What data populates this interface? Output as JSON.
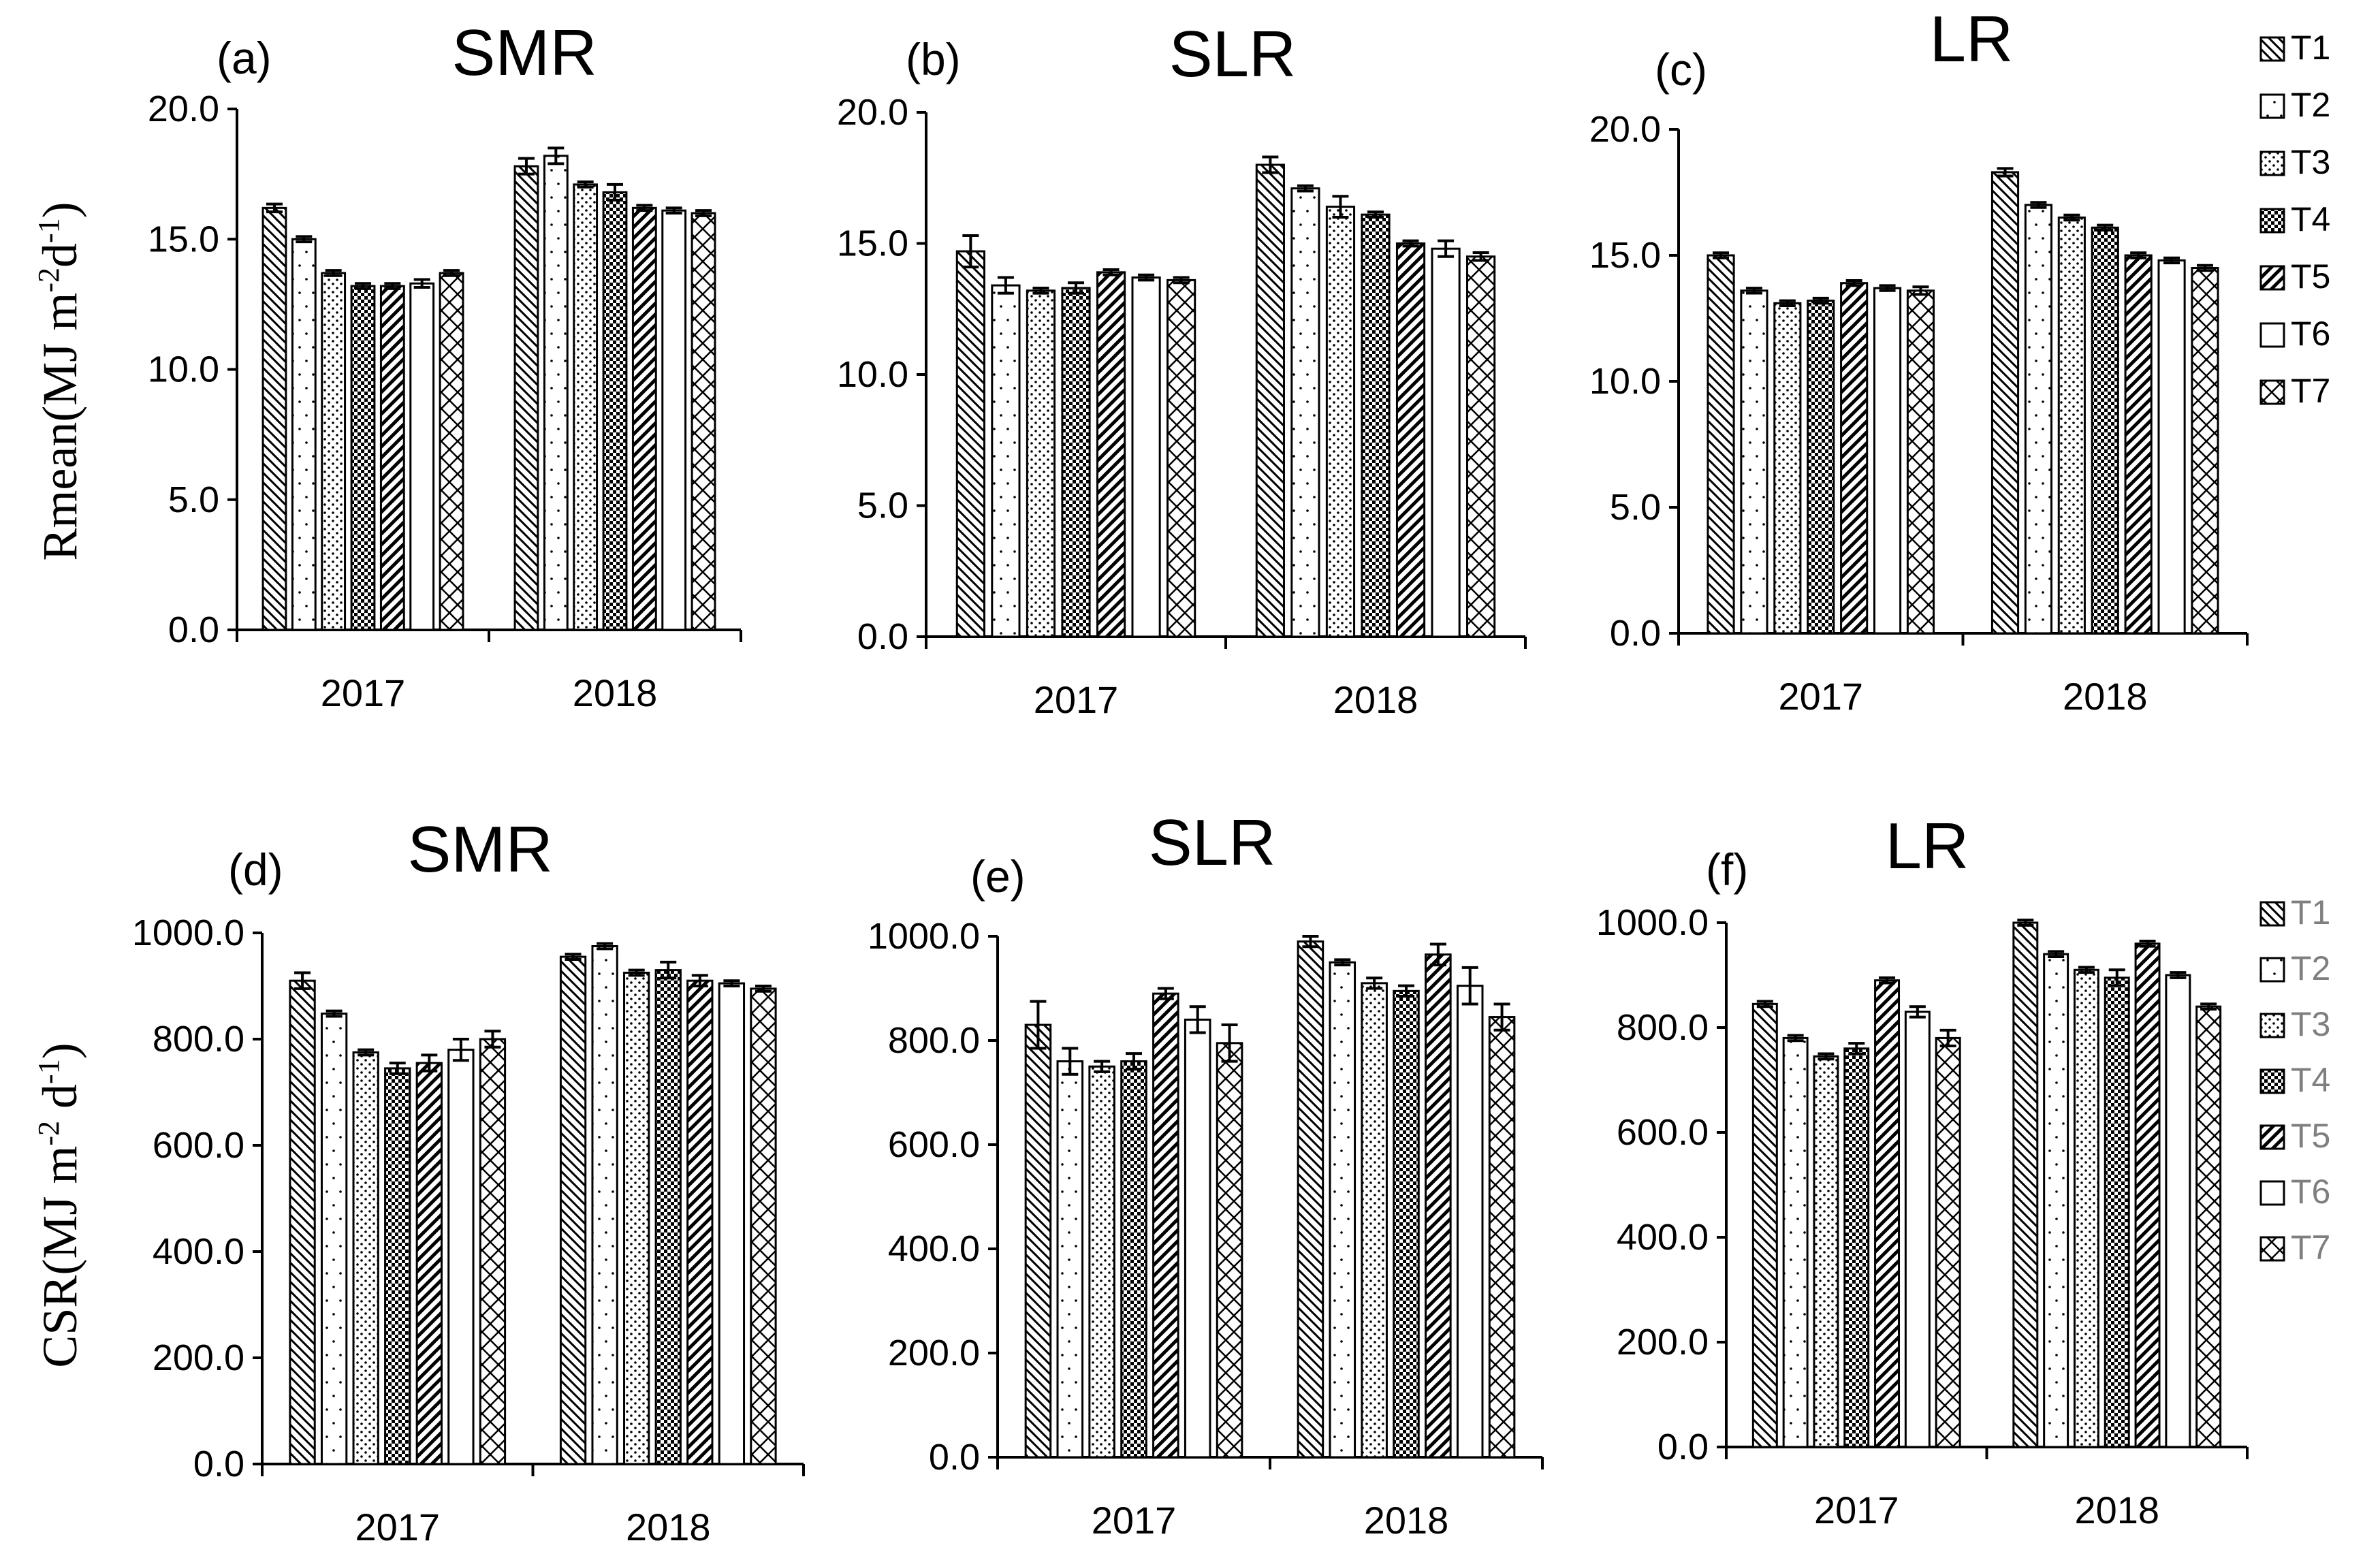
{
  "legends": [
    {
      "items": [
        "T1",
        "T2",
        "T3",
        "T4",
        "T5",
        "T6",
        "T7"
      ],
      "color": "#000000"
    },
    {
      "items": [
        "T1",
        "T2",
        "T3",
        "T4",
        "T5",
        "T6",
        "T7"
      ],
      "color": "#7f7f7f"
    }
  ],
  "row_y_labels": [
    {
      "main": "Rmean(MJ m",
      "sup1": "-2",
      "mid": "d",
      "sup2": "-1",
      "end": ")"
    },
    {
      "main": "CSR(MJ m",
      "sup1": "-2",
      "mid": " d",
      "sup2": "-1",
      "end": ")"
    }
  ],
  "chart_data": [
    {
      "type": "bar",
      "tag": "(a)",
      "title": "SMR",
      "categories": [
        "2017",
        "2018"
      ],
      "ylim": [
        0,
        20
      ],
      "yticks": [
        "0.0",
        "5.0",
        "10.0",
        "15.0",
        "20.0"
      ],
      "ylabel": "Rmean(MJ m-2d-1)",
      "series": [
        {
          "name": "T1",
          "values": [
            16.2,
            17.8
          ],
          "err": [
            0.15,
            0.3
          ]
        },
        {
          "name": "T2",
          "values": [
            15.0,
            18.2
          ],
          "err": [
            0.1,
            0.3
          ]
        },
        {
          "name": "T3",
          "values": [
            13.7,
            17.1
          ],
          "err": [
            0.1,
            0.1
          ]
        },
        {
          "name": "T4",
          "values": [
            13.2,
            16.8
          ],
          "err": [
            0.1,
            0.3
          ]
        },
        {
          "name": "T5",
          "values": [
            13.2,
            16.2
          ],
          "err": [
            0.1,
            0.1
          ]
        },
        {
          "name": "T6",
          "values": [
            13.3,
            16.1
          ],
          "err": [
            0.15,
            0.1
          ]
        },
        {
          "name": "T7",
          "values": [
            13.7,
            16.0
          ],
          "err": [
            0.1,
            0.1
          ]
        }
      ]
    },
    {
      "type": "bar",
      "tag": "(b)",
      "title": "SLR",
      "categories": [
        "2017",
        "2018"
      ],
      "ylim": [
        0,
        20
      ],
      "yticks": [
        "0.0",
        "5.0",
        "10.0",
        "15.0",
        "20.0"
      ],
      "ylabel": "",
      "series": [
        {
          "name": "T1",
          "values": [
            14.7,
            18.0
          ],
          "err": [
            0.6,
            0.3
          ]
        },
        {
          "name": "T2",
          "values": [
            13.4,
            17.1
          ],
          "err": [
            0.3,
            0.1
          ]
        },
        {
          "name": "T3",
          "values": [
            13.2,
            16.4
          ],
          "err": [
            0.1,
            0.4
          ]
        },
        {
          "name": "T4",
          "values": [
            13.3,
            16.1
          ],
          "err": [
            0.2,
            0.1
          ]
        },
        {
          "name": "T5",
          "values": [
            13.9,
            15.0
          ],
          "err": [
            0.1,
            0.1
          ]
        },
        {
          "name": "T6",
          "values": [
            13.7,
            14.8
          ],
          "err": [
            0.1,
            0.3
          ]
        },
        {
          "name": "T7",
          "values": [
            13.6,
            14.5
          ],
          "err": [
            0.1,
            0.15
          ]
        }
      ]
    },
    {
      "type": "bar",
      "tag": "(c)",
      "title": "LR",
      "categories": [
        "2017",
        "2018"
      ],
      "ylim": [
        0,
        20
      ],
      "yticks": [
        "0.0",
        "5.0",
        "10.0",
        "15.0",
        "20.0"
      ],
      "ylabel": "",
      "series": [
        {
          "name": "T1",
          "values": [
            15.0,
            18.3
          ],
          "err": [
            0.1,
            0.15
          ]
        },
        {
          "name": "T2",
          "values": [
            13.6,
            17.0
          ],
          "err": [
            0.1,
            0.1
          ]
        },
        {
          "name": "T3",
          "values": [
            13.1,
            16.5
          ],
          "err": [
            0.1,
            0.1
          ]
        },
        {
          "name": "T4",
          "values": [
            13.2,
            16.1
          ],
          "err": [
            0.1,
            0.1
          ]
        },
        {
          "name": "T5",
          "values": [
            13.9,
            15.0
          ],
          "err": [
            0.1,
            0.1
          ]
        },
        {
          "name": "T6",
          "values": [
            13.7,
            14.8
          ],
          "err": [
            0.1,
            0.1
          ]
        },
        {
          "name": "T7",
          "values": [
            13.6,
            14.5
          ],
          "err": [
            0.15,
            0.1
          ]
        }
      ]
    },
    {
      "type": "bar",
      "tag": "(d)",
      "title": "SMR",
      "categories": [
        "2017",
        "2018"
      ],
      "ylim": [
        0,
        1000
      ],
      "yticks": [
        "0.0",
        "200.0",
        "400.0",
        "600.0",
        "800.0",
        "1000.0"
      ],
      "ylabel": "CSR(MJ m-2 d-1)",
      "series": [
        {
          "name": "T1",
          "values": [
            910,
            955
          ],
          "err": [
            15,
            5
          ]
        },
        {
          "name": "T2",
          "values": [
            848,
            975
          ],
          "err": [
            5,
            5
          ]
        },
        {
          "name": "T3",
          "values": [
            775,
            925
          ],
          "err": [
            5,
            5
          ]
        },
        {
          "name": "T4",
          "values": [
            745,
            930
          ],
          "err": [
            10,
            15
          ]
        },
        {
          "name": "T5",
          "values": [
            755,
            910
          ],
          "err": [
            15,
            10
          ]
        },
        {
          "name": "T6",
          "values": [
            780,
            905
          ],
          "err": [
            20,
            5
          ]
        },
        {
          "name": "T7",
          "values": [
            800,
            895
          ],
          "err": [
            15,
            5
          ]
        }
      ]
    },
    {
      "type": "bar",
      "tag": "(e)",
      "title": "SLR",
      "categories": [
        "2017",
        "2018"
      ],
      "ylim": [
        0,
        1000
      ],
      "yticks": [
        "0.0",
        "200.0",
        "400.0",
        "600.0",
        "800.0",
        "1000.0"
      ],
      "ylabel": "",
      "series": [
        {
          "name": "T1",
          "values": [
            830,
            990
          ],
          "err": [
            45,
            10
          ]
        },
        {
          "name": "T2",
          "values": [
            760,
            950
          ],
          "err": [
            25,
            5
          ]
        },
        {
          "name": "T3",
          "values": [
            750,
            910
          ],
          "err": [
            10,
            10
          ]
        },
        {
          "name": "T4",
          "values": [
            760,
            895
          ],
          "err": [
            15,
            10
          ]
        },
        {
          "name": "T5",
          "values": [
            890,
            965
          ],
          "err": [
            10,
            20
          ]
        },
        {
          "name": "T6",
          "values": [
            840,
            905
          ],
          "err": [
            25,
            35
          ]
        },
        {
          "name": "T7",
          "values": [
            795,
            845
          ],
          "err": [
            35,
            25
          ]
        }
      ]
    },
    {
      "type": "bar",
      "tag": "(f)",
      "title": "LR",
      "categories": [
        "2017",
        "2018"
      ],
      "ylim": [
        0,
        1000
      ],
      "yticks": [
        "0.0",
        "200.0",
        "400.0",
        "600.0",
        "800.0",
        "1000.0"
      ],
      "ylabel": "",
      "series": [
        {
          "name": "T1",
          "values": [
            845,
            1000
          ],
          "err": [
            5,
            5
          ]
        },
        {
          "name": "T2",
          "values": [
            780,
            940
          ],
          "err": [
            5,
            5
          ]
        },
        {
          "name": "T3",
          "values": [
            745,
            910
          ],
          "err": [
            5,
            5
          ]
        },
        {
          "name": "T4",
          "values": [
            760,
            895
          ],
          "err": [
            10,
            15
          ]
        },
        {
          "name": "T5",
          "values": [
            890,
            960
          ],
          "err": [
            5,
            5
          ]
        },
        {
          "name": "T6",
          "values": [
            830,
            900
          ],
          "err": [
            10,
            5
          ]
        },
        {
          "name": "T7",
          "values": [
            780,
            840
          ],
          "err": [
            15,
            5
          ]
        }
      ]
    }
  ]
}
